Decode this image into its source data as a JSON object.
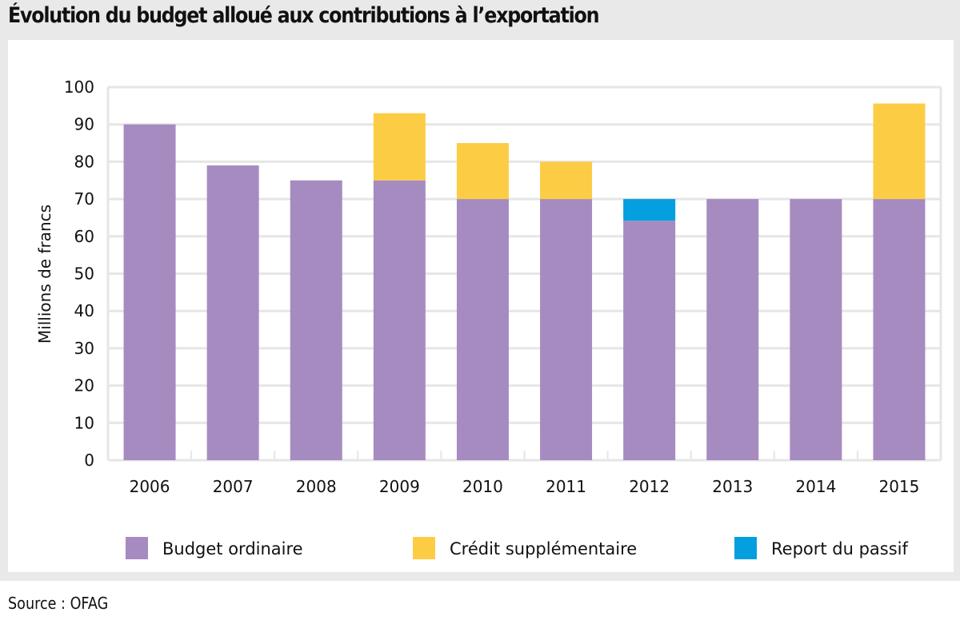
{
  "title": "Évolution du budget alloué aux contributions à l’exportation",
  "source": "Source : OFAG",
  "colors": {
    "budget_ordinaire": "#a68bc1",
    "credit_supplementaire": "#fccd44",
    "report_du_passif": "#039fdf",
    "grid": "#e6e6e6",
    "band": "#e9e9e9"
  },
  "chart_data": {
    "type": "bar",
    "stacked": true,
    "title": "Évolution du budget alloué aux contributions à l’exportation",
    "xlabel": "",
    "ylabel": "Millions de francs",
    "ylim": [
      0,
      100
    ],
    "yticks": [
      0,
      10,
      20,
      30,
      40,
      50,
      60,
      70,
      80,
      90,
      100
    ],
    "grid": true,
    "legend_position": "bottom",
    "categories": [
      "2006",
      "2007",
      "2008",
      "2009",
      "2010",
      "2011",
      "2012",
      "2013",
      "2014",
      "2015"
    ],
    "series": [
      {
        "name": "Budget ordinaire",
        "color": "#a68bc1",
        "values": [
          90,
          79,
          75,
          75,
          70,
          70,
          64.2,
          70,
          70,
          70
        ]
      },
      {
        "name": "Crédit supplémentaire",
        "color": "#fccd44",
        "values": [
          0,
          0,
          0,
          18,
          15,
          10,
          0,
          0,
          0,
          25.6
        ]
      },
      {
        "name": "Report du passif",
        "color": "#039fdf",
        "values": [
          0,
          0,
          0,
          0,
          0,
          0,
          5.8,
          0,
          0,
          0
        ]
      }
    ]
  }
}
